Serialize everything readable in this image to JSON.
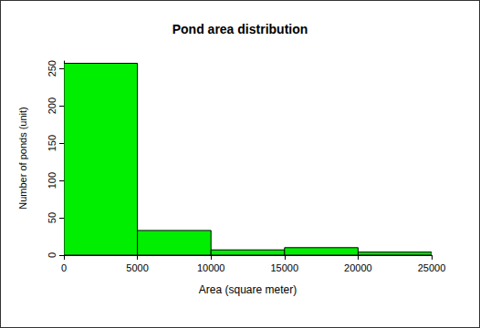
{
  "chart_data": {
    "type": "histogram",
    "title": "Pond area distribution",
    "x_label": "Area (square meter)",
    "y_label": "Number of ponds (unit)",
    "bins": [
      0,
      5000,
      10000,
      15000,
      20000,
      25000
    ],
    "values": [
      257,
      33,
      7,
      10,
      4
    ],
    "color": "#00ee00",
    "xlim": [
      0,
      25000
    ],
    "xticks": [
      0,
      5000,
      10000,
      15000,
      20000,
      25000
    ],
    "ylim": [
      0,
      260
    ],
    "yticks": [
      0,
      50,
      100,
      150,
      200,
      250
    ],
    "grid": false
  }
}
